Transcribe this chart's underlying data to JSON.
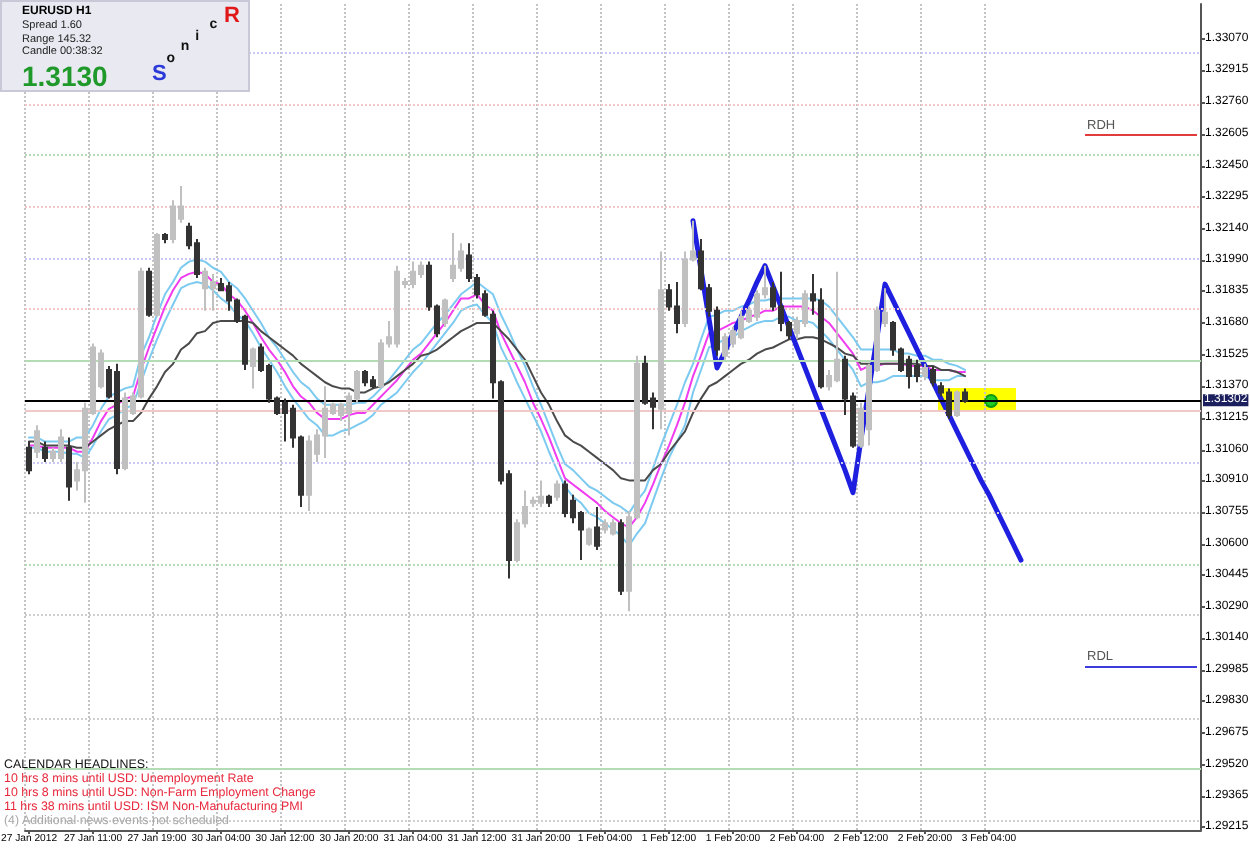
{
  "chart_data": {
    "type": "candlestick",
    "title": "EURUSD H1",
    "categories": [
      "27 Jan 2012",
      null,
      null,
      null,
      null,
      null,
      null,
      null,
      "27 Jan 11:00",
      null,
      null,
      null,
      null,
      null,
      null,
      null,
      "27 Jan 19:00",
      null,
      null,
      null,
      null,
      null,
      null,
      null,
      "30 Jan 04:00",
      null,
      null,
      null,
      null,
      null,
      null,
      null,
      "30 Jan 12:00",
      null,
      null,
      null,
      null,
      null,
      null,
      null,
      "30 Jan 20:00",
      null,
      null,
      null,
      null,
      null,
      null,
      null,
      "31 Jan 04:00",
      null,
      null,
      null,
      null,
      null,
      null,
      null,
      "31 Jan 12:00",
      null,
      null,
      null,
      null,
      null,
      null,
      null,
      "31 Jan 20:00",
      null,
      null,
      null,
      null,
      null,
      null,
      null,
      "1 Feb 04:00",
      null,
      null,
      null,
      null,
      null,
      null,
      null,
      "1 Feb 12:00",
      null,
      null,
      null,
      null,
      null,
      null,
      null,
      "1 Feb 20:00",
      null,
      null,
      null,
      null,
      null,
      null,
      null,
      "2 Feb 04:00",
      null,
      null,
      null,
      null,
      null,
      null,
      null,
      "2 Feb 12:00",
      null,
      null,
      null,
      null,
      null,
      null,
      null,
      "2 Feb 20:00",
      null,
      null,
      null,
      null,
      null,
      null,
      null,
      "3 Feb 04:00",
      null,
      null,
      null,
      null,
      null,
      null,
      null,
      null,
      null,
      null,
      null,
      null,
      null,
      null,
      null,
      null,
      null,
      null,
      null,
      null,
      null,
      null,
      null,
      null,
      null,
      null
    ],
    "ohlc": [
      [
        1.3107,
        1.311,
        1.3094,
        1.3096
      ],
      [
        1.3105,
        1.3118,
        1.3102,
        1.3115
      ],
      [
        1.3107,
        1.311,
        1.31,
        1.3102
      ],
      [
        1.3102,
        1.3107,
        1.31,
        1.3105
      ],
      [
        1.3102,
        1.3116,
        1.31,
        1.3112
      ],
      [
        1.3107,
        1.3112,
        1.3081,
        1.3088
      ],
      [
        1.3091,
        1.31,
        1.3086,
        1.3096
      ],
      [
        1.3096,
        1.3129,
        1.308,
        1.3126
      ],
      [
        1.3124,
        1.3158,
        1.3123,
        1.3156
      ],
      [
        1.3137,
        1.3155,
        1.3136,
        1.3153
      ],
      [
        1.3145,
        1.3147,
        1.3131,
        1.3132
      ],
      [
        1.3144,
        1.3148,
        1.3094,
        1.3097
      ],
      [
        1.3097,
        1.3134,
        1.3096,
        1.3131
      ],
      [
        1.3124,
        1.3134,
        1.3123,
        1.3132
      ],
      [
        1.3132,
        1.3195,
        1.3131,
        1.3193
      ],
      [
        1.3193,
        1.3195,
        1.3171,
        1.3172
      ],
      [
        1.3172,
        1.3212,
        1.3171,
        1.3211
      ],
      [
        1.3211,
        1.3212,
        1.3207,
        1.3209
      ],
      [
        1.3209,
        1.3228,
        1.3207,
        1.3225
      ],
      [
        1.3219,
        1.3235,
        1.3217,
        1.3225
      ],
      [
        1.3215,
        1.3217,
        1.3204,
        1.3206
      ],
      [
        1.3207,
        1.3209,
        1.319,
        1.3192
      ],
      [
        1.3185,
        1.3195,
        1.3174,
        1.3193
      ],
      [
        1.3185,
        1.3192,
        1.3174,
        1.3188
      ],
      [
        1.3187,
        1.319,
        1.3184,
        1.3184
      ],
      [
        1.3186,
        1.3188,
        1.3174,
        1.3179
      ],
      [
        1.3179,
        1.318,
        1.3168,
        1.3169
      ],
      [
        1.3171,
        1.3172,
        1.3145,
        1.3148
      ],
      [
        1.3147,
        1.3156,
        1.3136,
        1.3155
      ],
      [
        1.3156,
        1.3158,
        1.3144,
        1.3145
      ],
      [
        1.3147,
        1.3148,
        1.3129,
        1.3131
      ],
      [
        1.3131,
        1.3132,
        1.3123,
        1.3124
      ],
      [
        1.3129,
        1.3131,
        1.311,
        1.3124
      ],
      [
        1.3126,
        1.3128,
        1.3107,
        1.3112
      ],
      [
        1.3112,
        1.3113,
        1.3078,
        1.3084
      ],
      [
        1.3084,
        1.3113,
        1.3076,
        1.311
      ],
      [
        1.3104,
        1.3116,
        1.31,
        1.3113
      ],
      [
        1.3113,
        1.3137,
        1.3102,
        1.3126
      ],
      [
        1.3124,
        1.3129,
        1.3123,
        1.3128
      ],
      [
        1.3123,
        1.3129,
        1.312,
        1.3128
      ],
      [
        1.3124,
        1.3134,
        1.3113,
        1.3132
      ],
      [
        1.3131,
        1.3145,
        1.3129,
        1.3144
      ],
      [
        1.3144,
        1.3145,
        1.3137,
        1.3139
      ],
      [
        1.314,
        1.3142,
        1.3136,
        1.3137
      ],
      [
        1.3137,
        1.316,
        1.3136,
        1.3158
      ],
      [
        1.3158,
        1.3169,
        1.3156,
        1.3161
      ],
      [
        1.3158,
        1.3196,
        1.3156,
        1.3193
      ],
      [
        1.3187,
        1.319,
        1.3185,
        1.3188
      ],
      [
        1.3187,
        1.3198,
        1.3185,
        1.3193
      ],
      [
        1.3192,
        1.3198,
        1.319,
        1.3196
      ],
      [
        1.3196,
        1.3198,
        1.3174,
        1.3176
      ],
      [
        1.3176,
        1.3177,
        1.3161,
        1.3163
      ],
      [
        1.3168,
        1.318,
        1.3166,
        1.3179
      ],
      [
        1.319,
        1.3212,
        1.3188,
        1.3196
      ],
      [
        1.3195,
        1.3207,
        1.3193,
        1.3203
      ],
      [
        1.3201,
        1.3207,
        1.3188,
        1.319
      ],
      [
        1.319,
        1.3192,
        1.318,
        1.3182
      ],
      [
        1.3182,
        1.3184,
        1.3171,
        1.3172
      ],
      [
        1.3172,
        1.3174,
        1.3131,
        1.3139
      ],
      [
        1.3139,
        1.314,
        1.3089,
        1.3091
      ],
      [
        1.3094,
        1.3096,
        1.3043,
        1.3052
      ],
      [
        1.3052,
        1.3072,
        1.3051,
        1.307
      ],
      [
        1.307,
        1.3086,
        1.3068,
        1.3078
      ],
      [
        1.308,
        1.3083,
        1.3078,
        1.3081
      ],
      [
        1.308,
        1.3091,
        1.3078,
        1.3083
      ],
      [
        1.3083,
        1.3084,
        1.3078,
        1.308
      ],
      [
        1.3083,
        1.3091,
        1.3081,
        1.3089
      ],
      [
        1.3089,
        1.3091,
        1.3073,
        1.3075
      ],
      [
        1.3081,
        1.3084,
        1.307,
        1.3073
      ],
      [
        1.3075,
        1.3076,
        1.3052,
        1.3067
      ],
      [
        1.306,
        1.3068,
        1.3059,
        1.3067
      ],
      [
        1.3068,
        1.3078,
        1.3057,
        1.3059
      ],
      [
        1.3067,
        1.3072,
        1.3065,
        1.307
      ],
      [
        1.3065,
        1.3072,
        1.3064,
        1.307
      ],
      [
        1.307,
        1.3072,
        1.3035,
        1.3037
      ],
      [
        1.3037,
        1.3076,
        1.3027,
        1.3073
      ],
      [
        1.3073,
        1.3152,
        1.3072,
        1.3148
      ],
      [
        1.3148,
        1.3152,
        1.3128,
        1.3129
      ],
      [
        1.3131,
        1.3134,
        1.3116,
        1.3127
      ],
      [
        1.3126,
        1.3203,
        1.3116,
        1.3184
      ],
      [
        1.3184,
        1.3187,
        1.3174,
        1.3176
      ],
      [
        1.3176,
        1.3188,
        1.3163,
        1.3168
      ],
      [
        1.3168,
        1.3203,
        1.3166,
        1.3199
      ],
      [
        1.3199,
        1.3218,
        1.3198,
        1.3203
      ],
      [
        1.3203,
        1.3209,
        1.3184,
        1.3185
      ],
      [
        1.3185,
        1.3187,
        1.3171,
        1.3174
      ],
      [
        1.3174,
        1.3176,
        1.3152,
        1.3155
      ],
      [
        1.3152,
        1.3163,
        1.315,
        1.3161
      ],
      [
        1.3158,
        1.3166,
        1.3156,
        1.3164
      ],
      [
        1.3161,
        1.3174,
        1.316,
        1.3171
      ],
      [
        1.3169,
        1.3176,
        1.3168,
        1.3174
      ],
      [
        1.3171,
        1.3184,
        1.3169,
        1.3182
      ],
      [
        1.3182,
        1.3196,
        1.318,
        1.3185
      ],
      [
        1.3185,
        1.3188,
        1.3174,
        1.3176
      ],
      [
        1.3176,
        1.3193,
        1.3164,
        1.3168
      ],
      [
        1.3168,
        1.3169,
        1.316,
        1.3162
      ],
      [
        1.3163,
        1.3171,
        1.316,
        1.3169
      ],
      [
        1.3168,
        1.3184,
        1.3166,
        1.3182
      ],
      [
        1.3182,
        1.3192,
        1.3172,
        1.3179
      ],
      [
        1.3179,
        1.3185,
        1.3136,
        1.3137
      ],
      [
        1.3137,
        1.3145,
        1.3135,
        1.3142
      ],
      [
        1.314,
        1.3193,
        1.3139,
        1.315
      ],
      [
        1.315,
        1.3152,
        1.3123,
        1.3131
      ],
      [
        1.3132,
        1.3134,
        1.3107,
        1.3108
      ],
      [
        1.3108,
        1.3129,
        1.3107,
        1.3126
      ],
      [
        1.3116,
        1.3148,
        1.3108,
        1.3147
      ],
      [
        1.3145,
        1.3176,
        1.3144,
        1.3174
      ],
      [
        1.3168,
        1.3185,
        1.3166,
        1.3173
      ],
      [
        1.3168,
        1.3169,
        1.3152,
        1.3155
      ],
      [
        1.3155,
        1.3156,
        1.3144,
        1.3145
      ],
      [
        1.315,
        1.3152,
        1.3136,
        1.3142
      ],
      [
        1.3147,
        1.315,
        1.3139,
        1.3142
      ],
      [
        1.3142,
        1.3148,
        1.314,
        1.3146
      ],
      [
        1.3145,
        1.3147,
        1.3137,
        1.3139
      ],
      [
        1.3137,
        1.3139,
        1.3132,
        1.3134
      ],
      [
        1.3134,
        1.3136,
        1.3121,
        1.3123
      ],
      [
        1.3123,
        1.3135,
        1.3122,
        1.3134
      ],
      [
        1.3134,
        1.3136,
        1.3129,
        1.313
      ],
      null,
      null,
      null,
      null,
      null,
      null,
      null,
      null,
      null,
      null,
      null,
      null,
      null,
      null,
      null,
      null,
      null,
      null,
      null,
      null,
      null,
      null,
      null,
      null,
      null,
      null,
      null,
      null,
      null
    ],
    "colors": [
      "#333333",
      "#c0c0c0",
      "#333333",
      "#c0c0c0",
      "#c0c0c0",
      "#333333",
      "#c0c0c0",
      "#c0c0c0",
      "#c0c0c0",
      "#c0c0c0",
      "#333333",
      "#333333",
      "#c0c0c0",
      "#c0c0c0",
      "#c0c0c0",
      "#333333",
      "#c0c0c0",
      "#333333",
      "#c0c0c0",
      "#c0c0c0",
      "#333333",
      "#333333",
      "#c0c0c0",
      "#c0c0c0",
      "#333333",
      "#333333",
      "#333333",
      "#333333",
      "#c0c0c0",
      "#333333",
      "#333333",
      "#333333",
      "#333333",
      "#333333",
      "#333333",
      "#c0c0c0",
      "#c0c0c0",
      "#c0c0c0",
      "#c0c0c0",
      "#c0c0c0",
      "#c0c0c0",
      "#c0c0c0",
      "#333333",
      "#333333",
      "#c0c0c0",
      "#c0c0c0",
      "#c0c0c0",
      "#c0c0c0",
      "#c0c0c0",
      "#c0c0c0",
      "#333333",
      "#333333",
      "#c0c0c0",
      "#c0c0c0",
      "#c0c0c0",
      "#333333",
      "#333333",
      "#333333",
      "#333333",
      "#333333",
      "#333333",
      "#c0c0c0",
      "#c0c0c0",
      "#c0c0c0",
      "#c0c0c0",
      "#333333",
      "#c0c0c0",
      "#333333",
      "#333333",
      "#333333",
      "#c0c0c0",
      "#333333",
      "#c0c0c0",
      "#c0c0c0",
      "#333333",
      "#c0c0c0",
      "#c0c0c0",
      "#333333",
      "#333333",
      "#c0c0c0",
      "#333333",
      "#333333",
      "#c0c0c0",
      "#c0c0c0",
      "#333333",
      "#333333",
      "#333333",
      "#c0c0c0",
      "#c0c0c0",
      "#c0c0c0",
      "#c0c0c0",
      "#c0c0c0",
      "#c0c0c0",
      "#333333",
      "#333333",
      "#333333",
      "#c0c0c0",
      "#c0c0c0",
      "#333333",
      "#333333",
      "#c0c0c0",
      "#c0c0c0",
      "#333333",
      "#333333",
      "#c0c0c0",
      "#c0c0c0",
      "#c0c0c0",
      "#c0c0c0",
      "#333333",
      "#333333",
      "#333333",
      "#333333",
      "#c0c0c0",
      "#333333",
      "#333333",
      "#333333",
      "#c0c0c0",
      "#333333",
      null,
      null,
      null,
      null,
      null,
      null,
      null,
      null,
      null,
      null,
      null,
      null,
      null,
      null,
      null,
      null,
      null,
      null,
      null,
      null,
      null,
      null,
      null,
      null,
      null,
      null,
      null,
      null,
      null
    ],
    "series": [
      {
        "type": "line",
        "color": "#7ccaf0",
        "values": [
          1.3112,
          1.3112,
          1.311,
          1.311,
          1.311,
          1.311,
          1.3112,
          1.3112,
          1.3118,
          1.3126,
          1.3132,
          1.3134,
          1.3136,
          1.3137,
          1.3152,
          1.3161,
          1.3172,
          1.3182,
          1.3188,
          1.3195,
          1.3198,
          1.3199,
          1.3198,
          1.3195,
          1.3193,
          1.3188,
          1.3185,
          1.318,
          1.3174,
          1.3168,
          1.3161,
          1.3156,
          1.315,
          1.3144,
          1.3139,
          1.3136,
          1.3131,
          1.3128,
          1.3128,
          1.3128,
          1.3128,
          1.3129,
          1.3129,
          1.3132,
          1.3136,
          1.314,
          1.3145,
          1.315,
          1.3155,
          1.3158,
          1.3163,
          1.3168,
          1.3172,
          1.3177,
          1.3182,
          1.3185,
          1.3188,
          1.3185,
          1.3182,
          1.3172,
          1.3164,
          1.3155,
          1.3147,
          1.3137,
          1.3128,
          1.3118,
          1.3108,
          1.3099,
          1.3096,
          1.3092,
          1.3088,
          1.3086,
          1.3083,
          1.308,
          1.3078,
          1.3075,
          1.3081,
          1.3086,
          1.3097,
          1.3108,
          1.3118,
          1.3128,
          1.3139,
          1.3148,
          1.316,
          1.3171,
          1.3172,
          1.3174,
          1.3174,
          1.3176,
          1.3177,
          1.3179,
          1.3179,
          1.318,
          1.318,
          1.318,
          1.318,
          1.318,
          1.318,
          1.3179,
          1.3176,
          1.3171,
          1.3166,
          1.3161,
          1.3155,
          1.3155,
          1.3155,
          1.3155,
          1.3155,
          1.3153,
          1.3153,
          1.3152,
          1.3152,
          1.315,
          1.315,
          1.3148,
          1.3147,
          1.3145,
          null,
          null,
          null,
          null,
          null,
          null,
          null,
          null,
          null,
          null,
          null,
          null,
          null,
          null,
          null,
          null,
          null,
          null,
          null,
          null,
          null,
          null,
          null,
          null,
          null,
          null,
          null,
          null,
          null
        ]
      },
      {
        "type": "line",
        "color": "#f03cf0",
        "values": [
          1.3108,
          1.3108,
          1.3107,
          1.3107,
          1.3107,
          1.3107,
          1.3105,
          1.3105,
          1.3112,
          1.312,
          1.3126,
          1.3128,
          1.3131,
          1.3132,
          1.3145,
          1.3156,
          1.3166,
          1.3176,
          1.3184,
          1.319,
          1.3192,
          1.3193,
          1.3192,
          1.3188,
          1.3187,
          1.3182,
          1.3179,
          1.3174,
          1.3168,
          1.3161,
          1.3155,
          1.315,
          1.3144,
          1.3137,
          1.3132,
          1.3129,
          1.3124,
          1.3121,
          1.3121,
          1.3121,
          1.3123,
          1.3124,
          1.3124,
          1.3128,
          1.3132,
          1.3136,
          1.314,
          1.3145,
          1.315,
          1.3153,
          1.3158,
          1.3163,
          1.3168,
          1.3174,
          1.318,
          1.318,
          1.3182,
          1.3177,
          1.3174,
          1.3163,
          1.3155,
          1.3147,
          1.3139,
          1.3129,
          1.3121,
          1.3112,
          1.3102,
          1.3092,
          1.3089,
          1.3086,
          1.3083,
          1.308,
          1.3076,
          1.3073,
          1.307,
          1.3068,
          1.3073,
          1.308,
          1.3089,
          1.3099,
          1.3108,
          1.3118,
          1.3129,
          1.3142,
          1.3152,
          1.3163,
          1.3164,
          1.3166,
          1.3168,
          1.3169,
          1.3171,
          1.3172,
          1.3174,
          1.3174,
          1.3176,
          1.3176,
          1.3176,
          1.3176,
          1.3174,
          1.3171,
          1.3168,
          1.3163,
          1.3158,
          1.3153,
          1.3145,
          1.3147,
          1.3147,
          1.3148,
          1.3148,
          1.3148,
          1.3147,
          1.3147,
          1.3147,
          1.3145,
          1.3145,
          1.3145,
          1.3144,
          1.3144,
          null,
          null,
          null,
          null,
          null,
          null,
          null,
          null,
          null,
          null,
          null,
          null,
          null,
          null,
          null,
          null,
          null,
          null,
          null,
          null,
          null,
          null,
          null,
          null,
          null,
          null,
          null,
          null,
          null
        ]
      },
      {
        "type": "line",
        "color": "#7ccaf0",
        "values": [
          1.3107,
          1.3107,
          1.3105,
          1.3105,
          1.3105,
          1.3104,
          1.3104,
          1.3102,
          1.3108,
          1.3115,
          1.3121,
          1.3123,
          1.3126,
          1.3128,
          1.3139,
          1.315,
          1.316,
          1.3169,
          1.3177,
          1.3185,
          1.3187,
          1.3188,
          1.3187,
          1.3184,
          1.318,
          1.3177,
          1.3172,
          1.3169,
          1.3163,
          1.3156,
          1.315,
          1.3144,
          1.3137,
          1.3131,
          1.3126,
          1.3121,
          1.3118,
          1.3113,
          1.3113,
          1.3115,
          1.3116,
          1.3118,
          1.312,
          1.3123,
          1.3128,
          1.3131,
          1.3134,
          1.3139,
          1.3144,
          1.3148,
          1.3153,
          1.3158,
          1.3163,
          1.3168,
          1.3174,
          1.3176,
          1.3177,
          1.3172,
          1.3168,
          1.3156,
          1.3148,
          1.3139,
          1.3131,
          1.3123,
          1.3115,
          1.3105,
          1.3096,
          1.3088,
          1.3083,
          1.308,
          1.3075,
          1.3073,
          1.307,
          1.3067,
          1.3064,
          1.3059,
          1.3065,
          1.307,
          1.3081,
          1.3092,
          1.3102,
          1.311,
          1.3118,
          1.3134,
          1.3145,
          1.3156,
          1.3158,
          1.316,
          1.3161,
          1.3164,
          1.3166,
          1.3168,
          1.3169,
          1.3169,
          1.3171,
          1.3171,
          1.3169,
          1.3169,
          1.3168,
          1.3164,
          1.316,
          1.3155,
          1.315,
          1.3145,
          1.3137,
          1.3139,
          1.3139,
          1.314,
          1.3142,
          1.3142,
          1.3142,
          1.3142,
          1.3142,
          1.314,
          1.314,
          1.314,
          1.3142,
          1.3142,
          null,
          null,
          null,
          null,
          null,
          null,
          null,
          null,
          null,
          null,
          null,
          null,
          null,
          null,
          null,
          null,
          null,
          null,
          null,
          null,
          null,
          null,
          null,
          null,
          null,
          null,
          null,
          null,
          null
        ]
      },
      {
        "type": "line",
        "color": "#4a4a4a",
        "values": [
          1.311,
          1.311,
          1.3108,
          1.3108,
          1.3108,
          1.3108,
          1.3107,
          1.3107,
          1.311,
          1.3113,
          1.3116,
          1.3118,
          1.312,
          1.312,
          1.3124,
          1.3131,
          1.3137,
          1.3144,
          1.3148,
          1.3155,
          1.3158,
          1.3163,
          1.3164,
          1.3168,
          1.3169,
          1.3169,
          1.3169,
          1.3169,
          1.3168,
          1.3164,
          1.3161,
          1.3158,
          1.3155,
          1.3152,
          1.3148,
          1.3145,
          1.3142,
          1.3139,
          1.3137,
          1.3136,
          1.3136,
          1.3134,
          1.3134,
          1.3136,
          1.3137,
          1.3139,
          1.3142,
          1.3145,
          1.3148,
          1.3152,
          1.3153,
          1.3155,
          1.3158,
          1.3161,
          1.3164,
          1.3166,
          1.3168,
          1.3168,
          1.3168,
          1.3164,
          1.316,
          1.3155,
          1.315,
          1.3142,
          1.3134,
          1.3128,
          1.312,
          1.3113,
          1.311,
          1.3108,
          1.3105,
          1.3102,
          1.3099,
          1.3096,
          1.3092,
          1.3091,
          1.3091,
          1.3091,
          1.3096,
          1.3099,
          1.3105,
          1.311,
          1.3115,
          1.3124,
          1.3131,
          1.3137,
          1.3139,
          1.3142,
          1.3145,
          1.3148,
          1.315,
          1.3153,
          1.3155,
          1.3156,
          1.3158,
          1.316,
          1.316,
          1.3161,
          1.3161,
          1.316,
          1.3158,
          1.3156,
          1.3153,
          1.3152,
          1.3148,
          1.3148,
          1.3148,
          1.3148,
          1.3148,
          1.3148,
          1.3148,
          1.3148,
          1.3147,
          1.3147,
          1.3145,
          1.3145,
          1.3144,
          1.3142,
          null,
          null,
          null,
          null,
          null,
          null,
          null,
          null,
          null,
          null,
          null,
          null,
          null,
          null,
          null,
          null,
          null,
          null,
          null,
          null,
          null,
          null,
          null,
          null,
          null,
          null,
          null,
          null,
          null
        ]
      },
      {
        "type": "line",
        "color": "#1f1fe0",
        "values": [
          null,
          null,
          null,
          null,
          null,
          null,
          null,
          null,
          null,
          null,
          null,
          null,
          null,
          null,
          null,
          null,
          null,
          null,
          null,
          null,
          null,
          null,
          null,
          null,
          null,
          null,
          null,
          null,
          null,
          null,
          null,
          null,
          null,
          null,
          null,
          null,
          null,
          null,
          null,
          null,
          null,
          null,
          null,
          null,
          null,
          null,
          null,
          null,
          null,
          null,
          null,
          null,
          null,
          null,
          null,
          null,
          null,
          null,
          null,
          null,
          null,
          null,
          null,
          null,
          null,
          null,
          null,
          null,
          null,
          null,
          null,
          null,
          null,
          null,
          null,
          null,
          null,
          null,
          null,
          null,
          null,
          null,
          null,
          1.3218,
          1.3194,
          1.317,
          1.3146,
          1.3154,
          1.3163,
          1.3171,
          1.3179,
          1.3188,
          1.3196,
          1.3186,
          1.3176,
          1.3166,
          1.3156,
          1.3146,
          1.3136,
          1.3126,
          1.3116,
          1.3106,
          1.3096,
          1.3085,
          1.3111,
          1.3136,
          1.3161,
          1.3187,
          1.3179,
          1.3171,
          1.3163,
          1.3155,
          1.3147,
          1.3139,
          1.3131,
          1.3123,
          1.3115,
          1.3107,
          1.3099,
          1.3091,
          1.3084,
          1.3076,
          1.3068,
          1.306,
          1.3052,
          null,
          null,
          null,
          null,
          null,
          null,
          null,
          null,
          null,
          null,
          null,
          null,
          null,
          null,
          null,
          null,
          null,
          null,
          null,
          null,
          null,
          null
        ]
      }
    ],
    "ylim": [
      1.292,
      1.3324
    ],
    "yticks": [
      {
        "value": 1.3307,
        "label": "1.33070"
      },
      1.32915,
      {
        "value": 1.3276,
        "label": "1.32760"
      },
      1.32605,
      {
        "value": 1.3245,
        "label": "1.32450"
      },
      1.32295,
      {
        "value": 1.3214,
        "label": "1.32140"
      },
      {
        "value": 1.3199,
        "label": "1.31990"
      },
      1.31835,
      {
        "value": 1.3168,
        "label": "1.31680"
      },
      1.31525,
      {
        "value": 1.3137,
        "label": "1.31370"
      },
      1.31215,
      {
        "value": 1.3106,
        "label": "1.31060"
      },
      {
        "value": 1.3091,
        "label": "1.30910"
      },
      1.30755,
      {
        "value": 1.306,
        "label": "1.30600"
      },
      1.30445,
      {
        "value": 1.3029,
        "label": "1.30290"
      },
      {
        "value": 1.3014,
        "label": "1.30140"
      },
      1.29985,
      {
        "value": 1.2983,
        "label": "1.29830"
      },
      1.29675,
      {
        "value": 1.2952,
        "label": "1.29520"
      },
      1.29365,
      1.29215
    ],
    "grid": "x",
    "marker": "none",
    "ref_lines": [
      {
        "axis": "y",
        "value": 1.31302,
        "label": "1.31302",
        "color": "#000000"
      },
      {
        "axis": "y",
        "value": 1.326,
        "label": "RDH",
        "color": "#e03c3c"
      },
      {
        "axis": "y",
        "value": 1.3,
        "label": "RDL",
        "color": "#3c3cdc"
      },
      {
        "axis": "y",
        "value": 1.33,
        "color": "#c8c8f0",
        "line_style": "dotted"
      },
      {
        "axis": "y",
        "value": 1.3275,
        "color": "#f0c8c8",
        "line_style": "dotted"
      },
      {
        "axis": "y",
        "value": 1.325,
        "color": "#b4dcb4",
        "line_style": "dotted"
      },
      {
        "axis": "y",
        "value": 1.3225,
        "color": "#f0c8c8",
        "line_style": "dotted"
      },
      {
        "axis": "y",
        "value": 1.32,
        "color": "#c8c8f0",
        "line_style": "dotted"
      },
      {
        "axis": "y",
        "value": 1.3175,
        "color": "#f0c8c8",
        "line_style": "dotted"
      },
      {
        "axis": "y",
        "value": 1.315,
        "color": "#b4dcb4"
      },
      {
        "axis": "y",
        "value": 1.3125,
        "color": "#f0c8c8"
      },
      {
        "axis": "y",
        "value": 1.31,
        "color": "#c8c8f0",
        "line_style": "dotted"
      },
      {
        "axis": "y",
        "value": 1.3075,
        "color": "#d0d0d0",
        "line_style": "dotted"
      },
      {
        "axis": "y",
        "value": 1.305,
        "color": "#b4dcb4",
        "line_style": "dotted"
      },
      {
        "axis": "y",
        "value": 1.3025,
        "color": "#d0d0d0",
        "line_style": "dotted"
      },
      {
        "axis": "y",
        "value": 1.2975,
        "color": "#d0d0d0",
        "line_style": "dotted"
      },
      {
        "axis": "y",
        "value": 1.295,
        "color": "#b4dcb4"
      },
      {
        "axis": "y",
        "value": 1.2925,
        "color": "#d0d0d0",
        "line_style": "dotted"
      }
    ],
    "annotations": [
      "Spread 1.60",
      "Range 145.32",
      "Candle 00:38:32",
      "1.3130",
      "Sonic R",
      "CALENDAR HEADLINES:",
      "10 hrs 8 mins until USD: Unemployment Rate",
      "10 hrs 8 mins until USD: Non-Farm Employment Change",
      "11 hrs 38 mins until USD: ISM Non-Manufacturing PMI",
      "(4) Additional news events not scheduled"
    ]
  }
}
